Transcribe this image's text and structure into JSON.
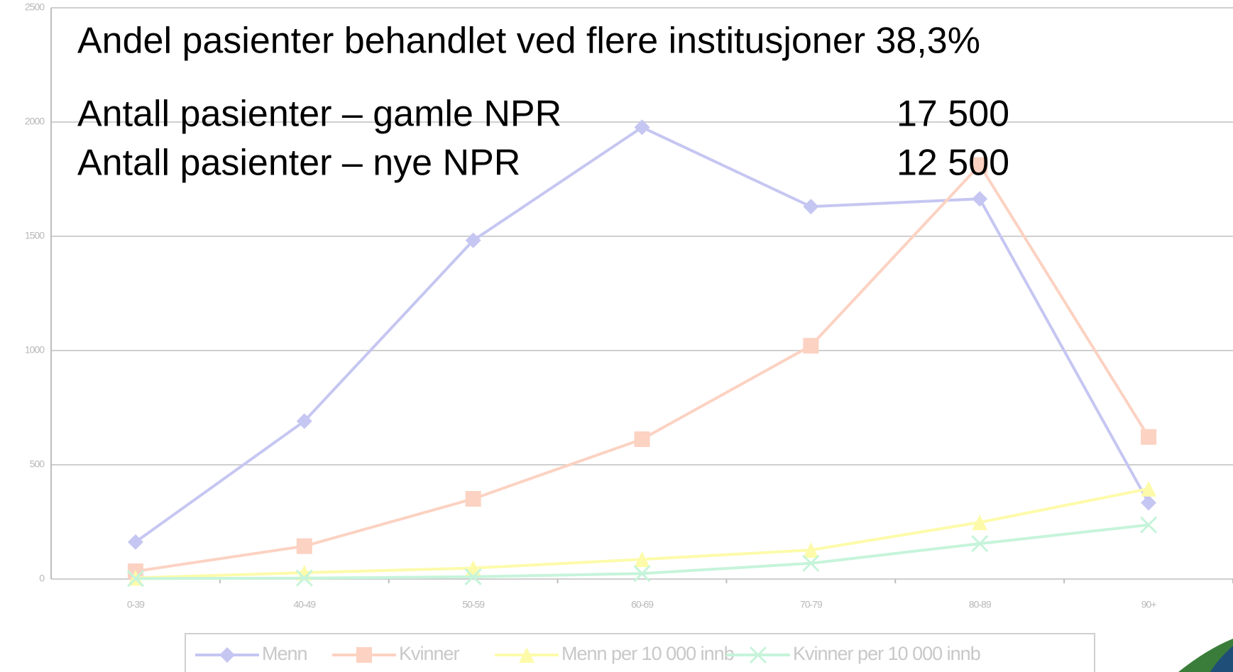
{
  "chart_data": {
    "type": "line",
    "title": "Andel pasienter behandlet ved flere institusjoner 38,3%",
    "annotations": [
      {
        "label": "Antall pasienter – gamle NPR",
        "value": "17 500"
      },
      {
        "label": "Antall pasienter – nye NPR",
        "value": "12 500"
      }
    ],
    "categories": [
      "0-39",
      "40-49",
      "50-59",
      "60-69",
      "70-79",
      "80-89",
      "90+"
    ],
    "series": [
      {
        "name": "Menn",
        "color": "#c6c6f2",
        "marker": "diamond",
        "values": [
          162,
          691,
          1482,
          1977,
          1630,
          1664,
          334
        ]
      },
      {
        "name": "Kvinner",
        "color": "#fcd2c2",
        "marker": "square",
        "values": [
          34,
          144,
          351,
          612,
          1021,
          1812,
          622
        ]
      },
      {
        "name": "Menn per 10 000 innb",
        "color": "#fdfbaa",
        "marker": "triangle",
        "values": [
          5,
          28,
          48,
          86,
          127,
          248,
          395
        ]
      },
      {
        "name": "Kvinner per 10 000 innb",
        "color": "#c6f4da",
        "marker": "x",
        "values": [
          2,
          4,
          10,
          24,
          69,
          155,
          237
        ]
      }
    ],
    "ylim": [
      0,
      2500
    ],
    "yticks": [
      0,
      500,
      1000,
      1500,
      2000,
      2500
    ],
    "grid": true
  }
}
